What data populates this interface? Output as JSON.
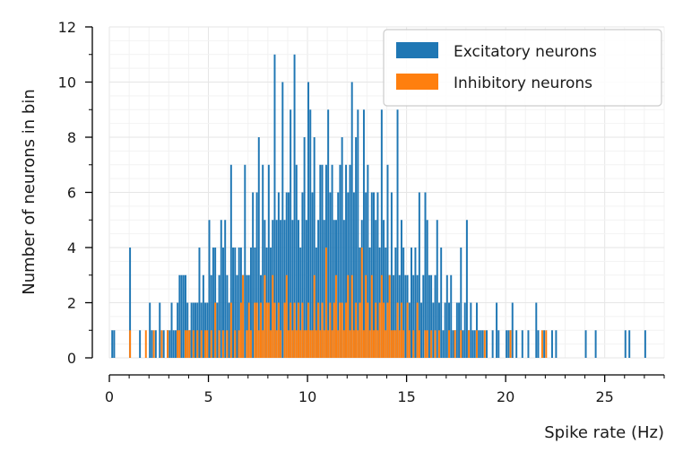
{
  "chart_data": {
    "type": "bar",
    "title": "",
    "xlabel": "Spike rate (Hz)",
    "ylabel": "Number of neurons in bin",
    "xlim": [
      0,
      28
    ],
    "ylim": [
      0,
      12
    ],
    "xticks": [
      0,
      5,
      10,
      15,
      20,
      25
    ],
    "xtick_labels": [
      "0",
      "5",
      "10",
      "15",
      "20",
      "25"
    ],
    "yticks": [
      0,
      2,
      4,
      6,
      8,
      10,
      12
    ],
    "ytick_labels": [
      "0",
      "2",
      "4",
      "6",
      "8",
      "10",
      "12"
    ],
    "grid": true,
    "legend_position": "top-right",
    "bin_width": 0.1,
    "series": [
      {
        "name": "Excitatory neurons",
        "color": "#1f77b4",
        "bins": [
          [
            0.1,
            1
          ],
          [
            0.2,
            1
          ],
          [
            1.0,
            4
          ],
          [
            1.5,
            1
          ],
          [
            2.0,
            2
          ],
          [
            2.1,
            1
          ],
          [
            2.3,
            1
          ],
          [
            2.5,
            2
          ],
          [
            2.7,
            1
          ],
          [
            2.9,
            1
          ],
          [
            3.0,
            1
          ],
          [
            3.1,
            2
          ],
          [
            3.2,
            1
          ],
          [
            3.3,
            1
          ],
          [
            3.4,
            2
          ],
          [
            3.5,
            3
          ],
          [
            3.6,
            3
          ],
          [
            3.7,
            3
          ],
          [
            3.8,
            3
          ],
          [
            3.9,
            2
          ],
          [
            4.0,
            1
          ],
          [
            4.1,
            2
          ],
          [
            4.2,
            2
          ],
          [
            4.3,
            2
          ],
          [
            4.4,
            2
          ],
          [
            4.5,
            4
          ],
          [
            4.6,
            2
          ],
          [
            4.7,
            3
          ],
          [
            4.8,
            2
          ],
          [
            4.9,
            2
          ],
          [
            5.0,
            5
          ],
          [
            5.1,
            3
          ],
          [
            5.2,
            4
          ],
          [
            5.3,
            4
          ],
          [
            5.4,
            2
          ],
          [
            5.5,
            3
          ],
          [
            5.6,
            5
          ],
          [
            5.7,
            4
          ],
          [
            5.8,
            5
          ],
          [
            5.9,
            3
          ],
          [
            6.0,
            2
          ],
          [
            6.1,
            7
          ],
          [
            6.2,
            4
          ],
          [
            6.3,
            4
          ],
          [
            6.4,
            3
          ],
          [
            6.5,
            4
          ],
          [
            6.6,
            4
          ],
          [
            6.7,
            3
          ],
          [
            6.8,
            7
          ],
          [
            6.9,
            3
          ],
          [
            7.0,
            3
          ],
          [
            7.1,
            4
          ],
          [
            7.2,
            6
          ],
          [
            7.3,
            4
          ],
          [
            7.4,
            6
          ],
          [
            7.5,
            8
          ],
          [
            7.6,
            3
          ],
          [
            7.7,
            7
          ],
          [
            7.8,
            5
          ],
          [
            7.9,
            4
          ],
          [
            8.0,
            7
          ],
          [
            8.1,
            4
          ],
          [
            8.2,
            5
          ],
          [
            8.3,
            11
          ],
          [
            8.4,
            5
          ],
          [
            8.5,
            6
          ],
          [
            8.6,
            5
          ],
          [
            8.7,
            10
          ],
          [
            8.8,
            5
          ],
          [
            8.9,
            6
          ],
          [
            9.0,
            6
          ],
          [
            9.1,
            9
          ],
          [
            9.2,
            5
          ],
          [
            9.3,
            11
          ],
          [
            9.4,
            7
          ],
          [
            9.5,
            5
          ],
          [
            9.6,
            4
          ],
          [
            9.7,
            6
          ],
          [
            9.8,
            8
          ],
          [
            9.9,
            5
          ],
          [
            10.0,
            10
          ],
          [
            10.1,
            9
          ],
          [
            10.2,
            6
          ],
          [
            10.3,
            8
          ],
          [
            10.4,
            4
          ],
          [
            10.5,
            5
          ],
          [
            10.6,
            7
          ],
          [
            10.7,
            7
          ],
          [
            10.8,
            5
          ],
          [
            10.9,
            7
          ],
          [
            11.0,
            9
          ],
          [
            11.1,
            6
          ],
          [
            11.2,
            7
          ],
          [
            11.3,
            5
          ],
          [
            11.4,
            5
          ],
          [
            11.5,
            6
          ],
          [
            11.6,
            7
          ],
          [
            11.7,
            8
          ],
          [
            11.8,
            5
          ],
          [
            11.9,
            7
          ],
          [
            12.0,
            6
          ],
          [
            12.1,
            7
          ],
          [
            12.2,
            10
          ],
          [
            12.3,
            6
          ],
          [
            12.4,
            8
          ],
          [
            12.5,
            9
          ],
          [
            12.6,
            4
          ],
          [
            12.7,
            5
          ],
          [
            12.8,
            9
          ],
          [
            12.9,
            6
          ],
          [
            13.0,
            7
          ],
          [
            13.1,
            4
          ],
          [
            13.2,
            6
          ],
          [
            13.3,
            6
          ],
          [
            13.4,
            5
          ],
          [
            13.5,
            6
          ],
          [
            13.6,
            4
          ],
          [
            13.7,
            9
          ],
          [
            13.8,
            5
          ],
          [
            13.9,
            4
          ],
          [
            14.0,
            7
          ],
          [
            14.1,
            3
          ],
          [
            14.2,
            6
          ],
          [
            14.3,
            3
          ],
          [
            14.4,
            4
          ],
          [
            14.5,
            9
          ],
          [
            14.6,
            3
          ],
          [
            14.7,
            5
          ],
          [
            14.8,
            4
          ],
          [
            14.9,
            3
          ],
          [
            15.0,
            3
          ],
          [
            15.1,
            2
          ],
          [
            15.2,
            4
          ],
          [
            15.3,
            3
          ],
          [
            15.4,
            4
          ],
          [
            15.5,
            3
          ],
          [
            15.6,
            6
          ],
          [
            15.7,
            2
          ],
          [
            15.8,
            3
          ],
          [
            15.9,
            6
          ],
          [
            16.0,
            5
          ],
          [
            16.1,
            3
          ],
          [
            16.2,
            3
          ],
          [
            16.3,
            2
          ],
          [
            16.4,
            3
          ],
          [
            16.5,
            5
          ],
          [
            16.6,
            2
          ],
          [
            16.7,
            4
          ],
          [
            16.8,
            1
          ],
          [
            16.9,
            2
          ],
          [
            17.0,
            3
          ],
          [
            17.1,
            2
          ],
          [
            17.2,
            3
          ],
          [
            17.3,
            1
          ],
          [
            17.4,
            1
          ],
          [
            17.5,
            2
          ],
          [
            17.6,
            2
          ],
          [
            17.7,
            4
          ],
          [
            17.8,
            1
          ],
          [
            17.9,
            2
          ],
          [
            18.0,
            5
          ],
          [
            18.1,
            1
          ],
          [
            18.2,
            2
          ],
          [
            18.3,
            1
          ],
          [
            18.4,
            1
          ],
          [
            18.5,
            2
          ],
          [
            18.6,
            1
          ],
          [
            18.7,
            1
          ],
          [
            18.8,
            1
          ],
          [
            19.0,
            1
          ],
          [
            19.3,
            1
          ],
          [
            19.5,
            2
          ],
          [
            19.6,
            1
          ],
          [
            20.0,
            1
          ],
          [
            20.1,
            1
          ],
          [
            20.2,
            1
          ],
          [
            20.3,
            2
          ],
          [
            20.5,
            1
          ],
          [
            20.8,
            1
          ],
          [
            21.1,
            1
          ],
          [
            21.5,
            2
          ],
          [
            21.6,
            1
          ],
          [
            21.9,
            1
          ],
          [
            22.3,
            1
          ],
          [
            22.5,
            1
          ],
          [
            24.0,
            1
          ],
          [
            24.5,
            1
          ],
          [
            26.0,
            1
          ],
          [
            26.2,
            1
          ],
          [
            27.0,
            1
          ]
        ]
      },
      {
        "name": "Inhibitory neurons",
        "color": "#ff7f0e",
        "bins": [
          [
            1.0,
            1
          ],
          [
            1.8,
            1
          ],
          [
            2.2,
            1
          ],
          [
            2.6,
            1
          ],
          [
            2.9,
            1
          ],
          [
            3.4,
            1
          ],
          [
            3.5,
            1
          ],
          [
            3.8,
            1
          ],
          [
            3.9,
            1
          ],
          [
            4.0,
            1
          ],
          [
            4.2,
            1
          ],
          [
            4.4,
            1
          ],
          [
            4.6,
            1
          ],
          [
            4.8,
            1
          ],
          [
            4.9,
            1
          ],
          [
            5.1,
            1
          ],
          [
            5.3,
            2
          ],
          [
            5.5,
            1
          ],
          [
            5.7,
            1
          ],
          [
            5.9,
            1
          ],
          [
            6.1,
            2
          ],
          [
            6.3,
            1
          ],
          [
            6.5,
            1
          ],
          [
            6.6,
            2
          ],
          [
            6.7,
            3
          ],
          [
            6.9,
            1
          ],
          [
            7.0,
            2
          ],
          [
            7.1,
            1
          ],
          [
            7.3,
            2
          ],
          [
            7.4,
            2
          ],
          [
            7.5,
            1
          ],
          [
            7.6,
            2
          ],
          [
            7.7,
            1
          ],
          [
            7.8,
            3
          ],
          [
            7.9,
            2
          ],
          [
            8.0,
            2
          ],
          [
            8.1,
            1
          ],
          [
            8.2,
            3
          ],
          [
            8.3,
            2
          ],
          [
            8.4,
            1
          ],
          [
            8.5,
            2
          ],
          [
            8.6,
            1
          ],
          [
            8.8,
            2
          ],
          [
            8.9,
            3
          ],
          [
            9.0,
            1
          ],
          [
            9.1,
            2
          ],
          [
            9.2,
            1
          ],
          [
            9.3,
            2
          ],
          [
            9.4,
            1
          ],
          [
            9.5,
            2
          ],
          [
            9.6,
            1
          ],
          [
            9.7,
            2
          ],
          [
            9.8,
            1
          ],
          [
            9.9,
            1
          ],
          [
            10.0,
            2
          ],
          [
            10.1,
            1
          ],
          [
            10.2,
            1
          ],
          [
            10.3,
            3
          ],
          [
            10.4,
            1
          ],
          [
            10.5,
            2
          ],
          [
            10.6,
            1
          ],
          [
            10.7,
            2
          ],
          [
            10.8,
            1
          ],
          [
            10.9,
            4
          ],
          [
            11.0,
            1
          ],
          [
            11.1,
            2
          ],
          [
            11.2,
            1
          ],
          [
            11.3,
            2
          ],
          [
            11.4,
            3
          ],
          [
            11.5,
            1
          ],
          [
            11.6,
            2
          ],
          [
            11.7,
            2
          ],
          [
            11.8,
            1
          ],
          [
            11.9,
            2
          ],
          [
            12.0,
            3
          ],
          [
            12.1,
            1
          ],
          [
            12.2,
            3
          ],
          [
            12.3,
            1
          ],
          [
            12.4,
            2
          ],
          [
            12.5,
            1
          ],
          [
            12.6,
            2
          ],
          [
            12.7,
            4
          ],
          [
            12.8,
            1
          ],
          [
            12.9,
            3
          ],
          [
            13.0,
            2
          ],
          [
            13.1,
            1
          ],
          [
            13.2,
            3
          ],
          [
            13.3,
            1
          ],
          [
            13.4,
            2
          ],
          [
            13.5,
            1
          ],
          [
            13.6,
            2
          ],
          [
            13.7,
            3
          ],
          [
            13.8,
            2
          ],
          [
            13.9,
            1
          ],
          [
            14.0,
            2
          ],
          [
            14.1,
            3
          ],
          [
            14.2,
            1
          ],
          [
            14.3,
            1
          ],
          [
            14.4,
            1
          ],
          [
            14.5,
            2
          ],
          [
            14.6,
            1
          ],
          [
            14.7,
            2
          ],
          [
            14.8,
            1
          ],
          [
            15.0,
            2
          ],
          [
            15.1,
            1
          ],
          [
            15.3,
            1
          ],
          [
            15.5,
            2
          ],
          [
            15.6,
            1
          ],
          [
            15.9,
            1
          ],
          [
            16.0,
            1
          ],
          [
            16.2,
            1
          ],
          [
            16.4,
            1
          ],
          [
            16.6,
            1
          ],
          [
            17.1,
            1
          ],
          [
            17.4,
            1
          ],
          [
            17.7,
            1
          ],
          [
            18.1,
            1
          ],
          [
            18.5,
            1
          ],
          [
            18.9,
            1
          ],
          [
            20.2,
            1
          ],
          [
            21.8,
            1
          ],
          [
            22.0,
            1
          ]
        ]
      }
    ]
  }
}
